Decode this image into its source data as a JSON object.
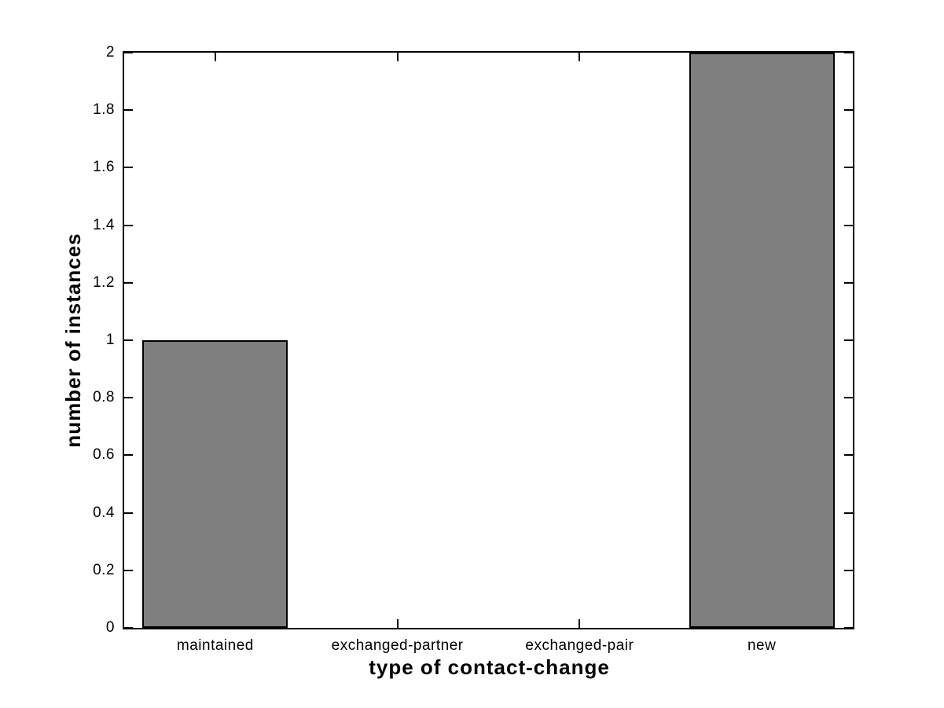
{
  "chart_data": {
    "type": "bar",
    "title": "",
    "categories": [
      "maintained",
      "exchanged-partner",
      "exchanged-pair",
      "new"
    ],
    "values": [
      1,
      0,
      0,
      2
    ],
    "xlabel": "type of contact-change",
    "ylabel": "number of instances",
    "ylim": [
      0,
      2
    ],
    "ytick_labels": [
      "0",
      "0.2",
      "0.4",
      "0.6",
      "0.8",
      "1",
      "1.2",
      "1.4",
      "1.6",
      "1.8",
      "2"
    ],
    "bar_width_fraction": 0.8,
    "grid": "off",
    "legend": "none",
    "colors": {
      "bar_fill": "#7f7f7f",
      "bar_edge": "#000000",
      "axis": "#000000",
      "background": "#ffffff",
      "text": "#000000"
    }
  }
}
